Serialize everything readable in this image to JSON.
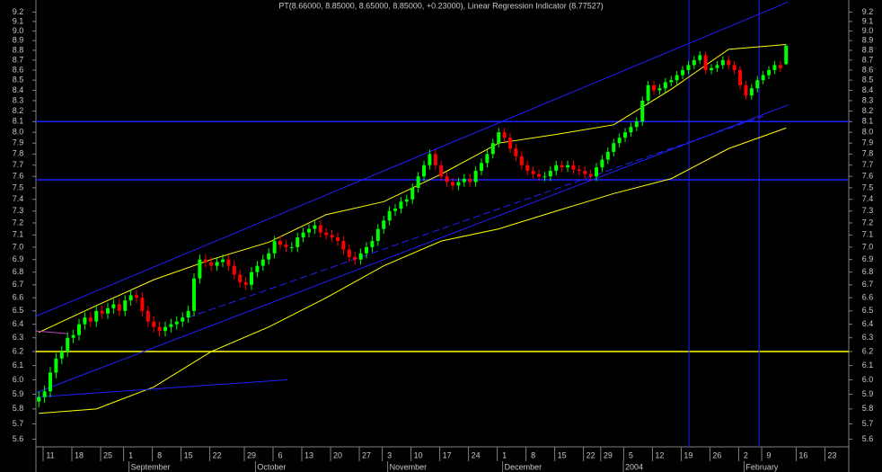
{
  "chart_data": {
    "type": "candlestick",
    "title": "PT(8.66000, 8.85000, 8.65000, 8.85000, +0.23000), Linear Regression Indicator (8.77527)",
    "log_scale": true,
    "ylim": [
      5.55,
      9.33
    ],
    "yticks": [
      5.6,
      5.7,
      5.8,
      5.9,
      {
        "value": 6,
        "label": "6.0"
      },
      6.1,
      6.2,
      6.3,
      6.4,
      6.5,
      6.6,
      6.7,
      6.8,
      6.9,
      {
        "value": 7,
        "label": "7.0"
      },
      7.1,
      7.2,
      7.3,
      7.4,
      7.5,
      7.6,
      7.7,
      7.8,
      7.9,
      {
        "value": 8,
        "label": "8.0"
      },
      8.1,
      8.2,
      8.3,
      8.4,
      8.5,
      8.6,
      8.7,
      8.8,
      8.9,
      {
        "value": 9,
        "label": "9.0"
      },
      9.1,
      9.2
    ],
    "xlim": [
      -0.5,
      140.9
    ],
    "xticks": [
      {
        "value": 2,
        "label": "11"
      },
      {
        "value": 7,
        "label": "18"
      },
      {
        "value": 12,
        "label": "25"
      },
      {
        "value": 16,
        "label": "1"
      },
      {
        "value": 21,
        "label": "8"
      },
      {
        "value": 26,
        "label": "15"
      },
      {
        "value": 31,
        "label": "22"
      },
      {
        "value": 37,
        "label": "29"
      },
      {
        "value": 42,
        "label": "6"
      },
      {
        "value": 47,
        "label": "13"
      },
      {
        "value": 52,
        "label": "20"
      },
      {
        "value": 57,
        "label": "27"
      },
      {
        "value": 61,
        "label": "3"
      },
      {
        "value": 66,
        "label": "10"
      },
      {
        "value": 71,
        "label": "17"
      },
      {
        "value": 76,
        "label": "24"
      },
      {
        "value": 81,
        "label": "1"
      },
      {
        "value": 86,
        "label": "8"
      },
      {
        "value": 91,
        "label": "15"
      },
      {
        "value": 96,
        "label": "22"
      },
      {
        "value": 99,
        "label": "29"
      },
      {
        "value": 103,
        "label": "5"
      },
      {
        "value": 108,
        "label": "12"
      },
      {
        "value": 113,
        "label": "19"
      },
      {
        "value": 118,
        "label": "26"
      },
      {
        "value": 123,
        "label": "2"
      },
      {
        "value": 127,
        "label": "9"
      },
      {
        "value": 133,
        "label": "16"
      },
      {
        "value": 138,
        "label": "23"
      }
    ],
    "month_labels": [
      {
        "value": 16,
        "label": "September"
      },
      {
        "value": 38,
        "label": "October"
      },
      {
        "value": 61,
        "label": "November"
      },
      {
        "value": 81,
        "label": "December"
      },
      {
        "value": 102,
        "label": "2004"
      },
      {
        "value": 123,
        "label": "February"
      }
    ],
    "up_color": "#00ff00",
    "down_color": "#ff0000",
    "open": [
      5.85,
      5.88,
      5.92,
      6.05,
      6.15,
      6.2,
      6.3,
      6.32,
      6.4,
      6.45,
      6.42,
      6.5,
      6.48,
      6.52,
      6.55,
      6.5,
      6.58,
      6.62,
      6.6,
      6.5,
      6.42,
      6.38,
      6.35,
      6.38,
      6.4,
      6.42,
      6.45,
      6.5,
      6.75,
      6.9,
      6.88,
      6.85,
      6.88,
      6.9,
      6.85,
      6.78,
      6.72,
      6.7,
      6.8,
      6.85,
      6.9,
      6.95,
      7.05,
      7.02,
      7.0,
      7.0,
      7.08,
      7.12,
      7.15,
      7.18,
      7.12,
      7.1,
      7.08,
      7.05,
      6.98,
      6.92,
      6.9,
      6.95,
      7.0,
      7.05,
      7.15,
      7.22,
      7.3,
      7.32,
      7.38,
      7.4,
      7.5,
      7.6,
      7.7,
      7.8,
      7.7,
      7.6,
      7.55,
      7.52,
      7.55,
      7.58,
      7.55,
      7.65,
      7.72,
      7.8,
      7.9,
      8.0,
      7.95,
      7.85,
      7.78,
      7.7,
      7.65,
      7.62,
      7.6,
      7.6,
      7.65,
      7.7,
      7.68,
      7.7,
      7.66,
      7.65,
      7.62,
      7.6,
      7.68,
      7.75,
      7.82,
      7.9,
      7.95,
      8.0,
      8.05,
      8.1,
      8.3,
      8.45,
      8.4,
      8.42,
      8.48,
      8.5,
      8.55,
      8.6,
      8.65,
      8.7,
      8.75,
      8.6,
      8.62,
      8.65,
      8.7,
      8.65,
      8.6,
      8.45,
      8.35,
      8.42,
      8.5,
      8.55,
      8.6,
      8.65,
      8.66
    ],
    "high": [
      5.92,
      5.96,
      6.09,
      6.19,
      6.24,
      6.34,
      6.36,
      6.44,
      6.49,
      6.49,
      6.54,
      6.54,
      6.56,
      6.59,
      6.59,
      6.62,
      6.66,
      6.66,
      6.64,
      6.54,
      6.46,
      6.42,
      6.42,
      6.44,
      6.46,
      6.49,
      6.54,
      6.79,
      6.94,
      6.94,
      6.92,
      6.92,
      6.94,
      6.94,
      6.89,
      6.82,
      6.76,
      6.84,
      6.89,
      6.94,
      6.99,
      7.09,
      7.09,
      7.06,
      7.04,
      7.12,
      7.16,
      7.19,
      7.22,
      7.22,
      7.16,
      7.14,
      7.12,
      7.09,
      7.02,
      6.96,
      6.99,
      7.04,
      7.09,
      7.19,
      7.26,
      7.34,
      7.36,
      7.42,
      7.44,
      7.54,
      7.64,
      7.74,
      7.84,
      7.84,
      7.74,
      7.64,
      7.59,
      7.59,
      7.62,
      7.62,
      7.69,
      7.76,
      7.84,
      7.94,
      8.04,
      8.04,
      7.99,
      7.89,
      7.82,
      7.74,
      7.69,
      7.66,
      7.64,
      7.69,
      7.74,
      7.74,
      7.74,
      7.74,
      7.7,
      7.69,
      7.66,
      7.72,
      7.79,
      7.86,
      7.94,
      7.99,
      8.04,
      8.09,
      8.14,
      8.34,
      8.49,
      8.49,
      8.46,
      8.52,
      8.54,
      8.59,
      8.64,
      8.69,
      8.74,
      8.79,
      8.79,
      8.66,
      8.69,
      8.74,
      8.74,
      8.69,
      8.64,
      8.49,
      8.46,
      8.54,
      8.59,
      8.64,
      8.69,
      8.69,
      8.85
    ],
    "low": [
      5.81,
      5.84,
      5.88,
      6.01,
      6.11,
      6.16,
      6.26,
      6.28,
      6.36,
      6.38,
      6.38,
      6.44,
      6.44,
      6.48,
      6.46,
      6.46,
      6.54,
      6.56,
      6.46,
      6.38,
      6.34,
      6.31,
      6.31,
      6.34,
      6.36,
      6.38,
      6.41,
      6.46,
      6.71,
      6.84,
      6.81,
      6.81,
      6.84,
      6.81,
      6.74,
      6.68,
      6.66,
      6.66,
      6.76,
      6.81,
      6.86,
      6.91,
      6.98,
      6.96,
      6.96,
      6.96,
      7.04,
      7.08,
      7.11,
      7.08,
      7.06,
      7.04,
      7.01,
      6.94,
      6.88,
      6.86,
      6.86,
      6.91,
      6.96,
      7.01,
      7.11,
      7.18,
      7.26,
      7.28,
      7.34,
      7.36,
      7.46,
      7.56,
      7.66,
      7.66,
      7.56,
      7.51,
      7.48,
      7.48,
      7.51,
      7.51,
      7.51,
      7.61,
      7.68,
      7.76,
      7.86,
      7.91,
      7.81,
      7.74,
      7.66,
      7.61,
      7.58,
      7.56,
      7.56,
      7.56,
      7.61,
      7.64,
      7.64,
      7.62,
      7.61,
      7.58,
      7.56,
      7.56,
      7.64,
      7.71,
      7.78,
      7.86,
      7.91,
      7.96,
      8.01,
      8.06,
      8.26,
      8.36,
      8.36,
      8.38,
      8.44,
      8.46,
      8.51,
      8.56,
      8.61,
      8.66,
      8.56,
      8.56,
      8.58,
      8.61,
      8.61,
      8.56,
      8.41,
      8.31,
      8.31,
      8.38,
      8.46,
      8.51,
      8.56,
      8.58,
      8.65
    ],
    "close": [
      5.88,
      5.92,
      6.05,
      6.15,
      6.2,
      6.3,
      6.32,
      6.4,
      6.45,
      6.42,
      6.5,
      6.48,
      6.52,
      6.55,
      6.5,
      6.58,
      6.62,
      6.6,
      6.5,
      6.42,
      6.38,
      6.35,
      6.38,
      6.4,
      6.42,
      6.45,
      6.5,
      6.75,
      6.9,
      6.88,
      6.85,
      6.88,
      6.9,
      6.85,
      6.78,
      6.72,
      6.7,
      6.8,
      6.85,
      6.9,
      6.95,
      7.05,
      7.02,
      7.0,
      7.0,
      7.08,
      7.12,
      7.15,
      7.18,
      7.12,
      7.1,
      7.08,
      7.05,
      6.98,
      6.92,
      6.9,
      6.95,
      7.0,
      7.05,
      7.15,
      7.22,
      7.3,
      7.32,
      7.38,
      7.4,
      7.5,
      7.6,
      7.7,
      7.8,
      7.7,
      7.6,
      7.55,
      7.52,
      7.55,
      7.58,
      7.55,
      7.65,
      7.72,
      7.8,
      7.9,
      8.0,
      7.95,
      7.85,
      7.78,
      7.7,
      7.65,
      7.62,
      7.6,
      7.6,
      7.65,
      7.7,
      7.68,
      7.7,
      7.66,
      7.65,
      7.62,
      7.6,
      7.68,
      7.75,
      7.82,
      7.9,
      7.95,
      8.0,
      8.05,
      8.1,
      8.3,
      8.45,
      8.4,
      8.42,
      8.48,
      8.5,
      8.55,
      8.6,
      8.65,
      8.7,
      8.75,
      8.6,
      8.62,
      8.65,
      8.7,
      8.65,
      8.6,
      8.45,
      8.35,
      8.42,
      8.5,
      8.55,
      8.6,
      8.65,
      8.62,
      8.85
    ],
    "overlays": [
      {
        "color": "#ffff00",
        "dash": false,
        "x": [
          0,
          10,
          20,
          30,
          40,
          50,
          60,
          70,
          80,
          90,
          100,
          110,
          120,
          130
        ],
        "values": [
          5.77,
          5.8,
          5.95,
          6.2,
          6.38,
          6.6,
          6.85,
          7.05,
          7.15,
          7.3,
          7.45,
          7.58,
          7.85,
          8.04
        ]
      },
      {
        "color": "#ffff00",
        "dash": false,
        "x": [
          0,
          10,
          20,
          30,
          40,
          50,
          60,
          70,
          80,
          90,
          100,
          110,
          120,
          130
        ],
        "values": [
          6.34,
          6.54,
          6.74,
          6.9,
          7.04,
          7.27,
          7.38,
          7.62,
          7.9,
          7.98,
          8.07,
          8.41,
          8.81,
          8.86
        ]
      },
      {
        "color": "#2020ff",
        "dash": false,
        "x": [
          -0.5,
          130.4
        ],
        "values": [
          6.46,
          9.31
        ]
      },
      {
        "color": "#2020ff",
        "dash": false,
        "x": [
          -0.5,
          130.4
        ],
        "values": [
          5.91,
          8.26
        ]
      },
      {
        "color": "#2020ff",
        "dash": true,
        "x": [
          26,
          126
        ],
        "values": [
          6.45,
          8.15
        ]
      },
      {
        "color": "#2020ff",
        "dash": false,
        "x": [
          -0.5,
          43.3
        ],
        "values": [
          5.88,
          6.0
        ]
      },
      {
        "color": "#c040c0",
        "dash": false,
        "x": [
          -0.5,
          5
        ],
        "values": [
          6.35,
          6.33
        ]
      }
    ],
    "hlines": [
      {
        "value": 8.1,
        "color": "#2020ff"
      },
      {
        "value": 7.57,
        "color": "#2020ff"
      },
      {
        "value": 6.2,
        "color": "#ffff00"
      }
    ],
    "vlines": [
      {
        "value": 113.1,
        "color": "#2020ff"
      },
      {
        "value": 125.3,
        "color": "#2020ff"
      }
    ]
  }
}
